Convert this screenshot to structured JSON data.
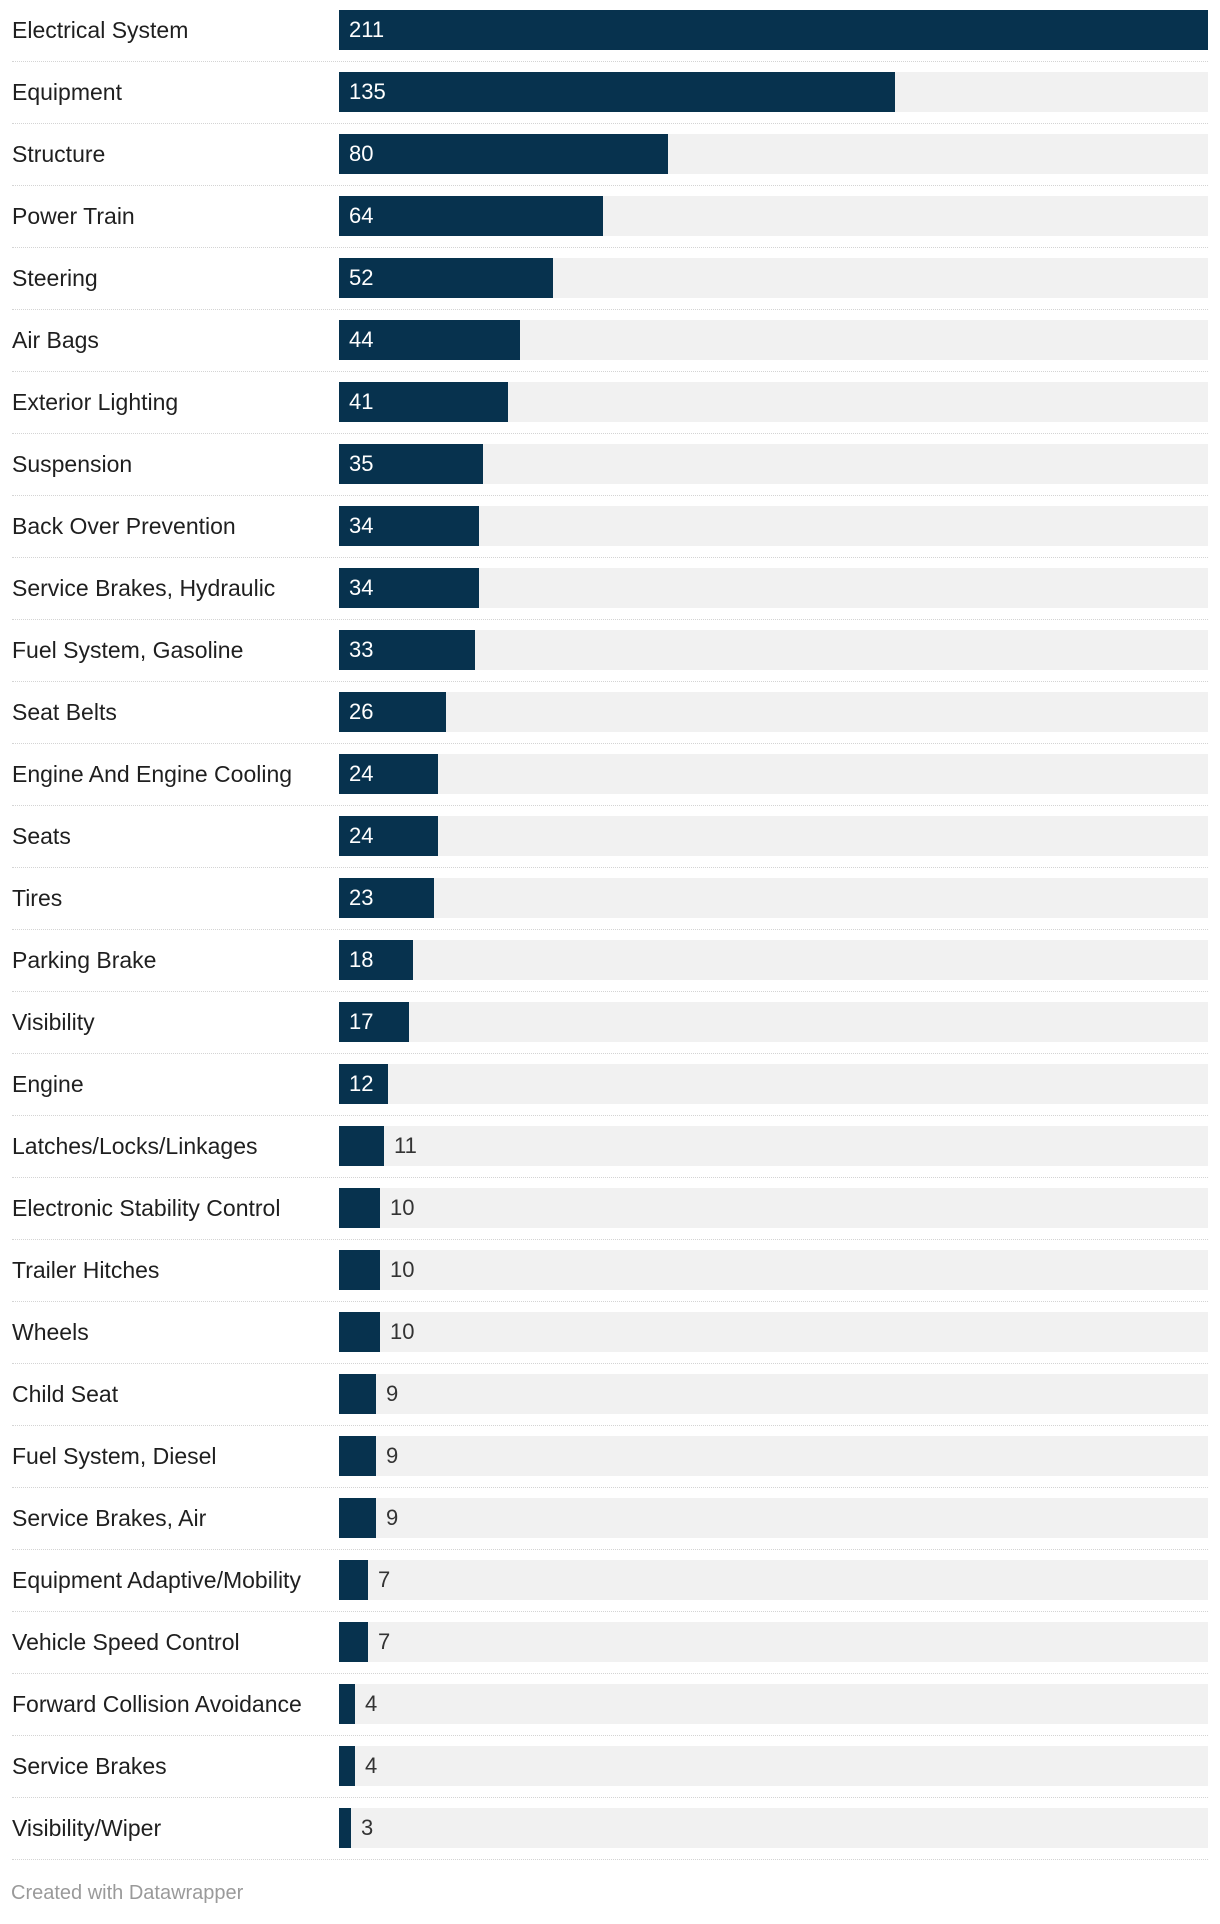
{
  "chart_data": {
    "type": "bar",
    "orientation": "horizontal",
    "categories": [
      "Electrical System",
      "Equipment",
      "Structure",
      "Power Train",
      "Steering",
      "Air Bags",
      "Exterior Lighting",
      "Suspension",
      "Back Over Prevention",
      "Service Brakes, Hydraulic",
      "Fuel System, Gasoline",
      "Seat Belts",
      "Engine And Engine Cooling",
      "Seats",
      "Tires",
      "Parking Brake",
      "Visibility",
      "Engine",
      "Latches/Locks/Linkages",
      "Electronic Stability Control",
      "Trailer Hitches",
      "Wheels",
      "Child Seat",
      "Fuel System, Diesel",
      "Service Brakes, Air",
      "Equipment Adaptive/Mobility",
      "Vehicle Speed Control",
      "Forward Collision Avoidance",
      "Service Brakes",
      "Visibility/Wiper"
    ],
    "values": [
      211,
      135,
      80,
      64,
      52,
      44,
      41,
      35,
      34,
      34,
      33,
      26,
      24,
      24,
      23,
      18,
      17,
      12,
      11,
      10,
      10,
      10,
      9,
      9,
      9,
      7,
      7,
      4,
      4,
      3
    ],
    "xlim": [
      0,
      211
    ],
    "data_labels": true,
    "grid": false,
    "colors": {
      "bar": "#07324e",
      "track": "#f1f1f1",
      "label_inside": "#ffffff",
      "label_outside": "#333333"
    }
  },
  "footer": {
    "credit": "Created with Datawrapper"
  }
}
